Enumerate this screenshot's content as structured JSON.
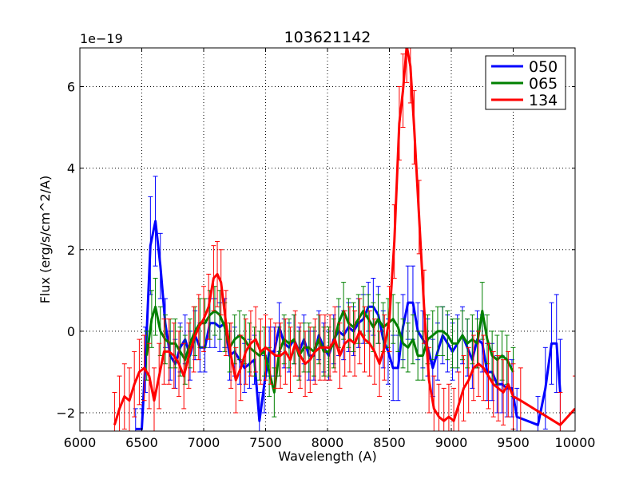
{
  "chart_data": {
    "type": "line",
    "title": "103621142",
    "xlabel": "Wavelength (A)",
    "ylabel": "Flux (erg/s/cm^2/A)",
    "y_offset_label": "1e−19",
    "xlim": [
      6000,
      10000
    ],
    "ylim": [
      -2.45,
      6.95
    ],
    "grid": true,
    "x_ticks": [
      6000,
      6500,
      7000,
      7500,
      8000,
      8500,
      9000,
      9500,
      10000
    ],
    "x_tick_labels": [
      "6000",
      "6500",
      "7000",
      "7500",
      "8000",
      "8500",
      "9000",
      "9500",
      "10000"
    ],
    "y_ticks": [
      -2,
      0,
      2,
      4,
      6
    ],
    "y_tick_labels": [
      "−2",
      "0",
      "2",
      "4",
      "6"
    ],
    "legend_position": "top-right",
    "series": [
      {
        "name": "050",
        "color": "#0000ff",
        "x": [
          6450,
          6500,
          6530,
          6570,
          6610,
          6650,
          6690,
          6730,
          6770,
          6810,
          6850,
          6890,
          6930,
          6970,
          7010,
          7050,
          7090,
          7130,
          7170,
          7210,
          7250,
          7290,
          7330,
          7370,
          7410,
          7450,
          7490,
          7530,
          7570,
          7610,
          7650,
          7690,
          7730,
          7770,
          7810,
          7850,
          7890,
          7930,
          7970,
          8010,
          8050,
          8090,
          8130,
          8170,
          8210,
          8250,
          8290,
          8330,
          8370,
          8410,
          8450,
          8490,
          8530,
          8570,
          8610,
          8650,
          8690,
          8730,
          8770,
          8810,
          8850,
          8890,
          8930,
          8970,
          9010,
          9050,
          9090,
          9130,
          9170,
          9210,
          9250,
          9290,
          9330,
          9370,
          9410,
          9450,
          9490,
          9530,
          9700,
          9760,
          9810,
          9850,
          9880
        ],
        "y": [
          -2.4,
          -2.4,
          -0.7,
          2.1,
          2.7,
          1.6,
          0.2,
          -0.6,
          -0.8,
          -0.4,
          -0.2,
          -0.6,
          -0.1,
          -0.4,
          -0.4,
          0.2,
          0.2,
          0.1,
          0.2,
          -0.6,
          -0.5,
          -0.7,
          -0.9,
          -0.8,
          -0.7,
          -2.2,
          -1.3,
          -0.5,
          -0.5,
          0.1,
          -0.3,
          -0.4,
          -0.2,
          -0.5,
          -0.2,
          -0.6,
          -0.6,
          -0.1,
          -0.4,
          -0.6,
          -0.2,
          0.0,
          -0.1,
          0.1,
          0.0,
          0.2,
          0.3,
          0.6,
          0.6,
          0.4,
          -0.2,
          -0.5,
          -0.9,
          -0.9,
          0.1,
          0.7,
          0.7,
          0.0,
          -0.2,
          -0.4,
          -0.9,
          -0.5,
          -0.1,
          -0.3,
          -0.5,
          -0.3,
          -0.1,
          -0.4,
          -0.7,
          -0.2,
          -0.3,
          -1.0,
          -1.0,
          -1.3,
          -1.3,
          -1.4,
          -1.4,
          -2.1,
          -2.3,
          -1.4,
          -0.3,
          -0.3,
          -1.5
        ],
        "err": [
          0.5,
          0.5,
          0.8,
          1.2,
          1.1,
          0.8,
          0.6,
          0.6,
          0.6,
          0.6,
          0.6,
          0.6,
          0.6,
          0.6,
          0.6,
          0.6,
          0.6,
          0.6,
          0.6,
          0.6,
          0.6,
          0.6,
          0.6,
          0.6,
          0.6,
          0.7,
          0.7,
          0.6,
          0.6,
          0.6,
          0.6,
          0.6,
          0.6,
          0.6,
          0.6,
          0.6,
          0.6,
          0.6,
          0.6,
          0.6,
          0.6,
          0.6,
          0.6,
          0.6,
          0.6,
          0.6,
          0.6,
          0.6,
          0.7,
          0.7,
          0.7,
          0.8,
          0.8,
          0.8,
          0.8,
          0.9,
          0.9,
          0.7,
          0.7,
          0.7,
          0.7,
          0.7,
          0.7,
          0.7,
          0.7,
          0.7,
          0.7,
          0.7,
          0.7,
          0.7,
          0.7,
          0.7,
          0.7,
          0.7,
          0.7,
          0.7,
          0.7,
          0.7,
          0.7,
          1.0,
          1.0,
          1.2,
          1.3
        ]
      },
      {
        "name": "065",
        "color": "#008000",
        "x": [
          6540,
          6580,
          6610,
          6650,
          6690,
          6730,
          6770,
          6810,
          6850,
          6890,
          6930,
          6970,
          7010,
          7050,
          7090,
          7130,
          7170,
          7210,
          7250,
          7290,
          7330,
          7370,
          7410,
          7450,
          7490,
          7530,
          7570,
          7610,
          7650,
          7690,
          7730,
          7770,
          7810,
          7850,
          7890,
          7930,
          7970,
          8010,
          8050,
          8090,
          8130,
          8170,
          8210,
          8250,
          8290,
          8330,
          8370,
          8410,
          8450,
          8490,
          8530,
          8570,
          8610,
          8650,
          8690,
          8730,
          8770,
          8810,
          8850,
          8890,
          8930,
          8970,
          9010,
          9050,
          9090,
          9130,
          9170,
          9210,
          9250,
          9290,
          9330,
          9370,
          9410,
          9450,
          9500
        ],
        "y": [
          -0.6,
          0.3,
          0.6,
          0.0,
          -0.2,
          -0.3,
          -0.3,
          -0.5,
          -0.7,
          -0.3,
          0.0,
          0.2,
          0.2,
          0.4,
          0.5,
          0.4,
          0.1,
          -0.4,
          -0.2,
          -0.1,
          -0.2,
          -0.4,
          -0.5,
          -0.6,
          -0.5,
          -1.0,
          -1.5,
          -0.5,
          -0.2,
          -0.3,
          -0.2,
          -0.6,
          -0.4,
          -0.4,
          -0.5,
          -0.2,
          -0.5,
          -0.5,
          -0.3,
          0.2,
          0.5,
          0.2,
          0.1,
          0.3,
          0.5,
          0.3,
          0.1,
          0.3,
          0.1,
          0.2,
          0.3,
          0.1,
          -0.3,
          -0.4,
          -0.2,
          -0.6,
          -0.6,
          -0.2,
          -0.1,
          0.0,
          0.0,
          -0.1,
          -0.3,
          -0.3,
          -0.1,
          -0.3,
          -0.2,
          -0.3,
          0.5,
          -0.2,
          -0.6,
          -0.7,
          -0.6,
          -0.7,
          -1.0
        ],
        "err": [
          0.6,
          0.7,
          0.7,
          0.6,
          0.6,
          0.6,
          0.6,
          0.6,
          0.6,
          0.6,
          0.6,
          0.6,
          0.6,
          0.6,
          0.6,
          0.6,
          0.6,
          0.6,
          0.6,
          0.6,
          0.6,
          0.6,
          0.6,
          0.6,
          0.6,
          0.6,
          0.6,
          0.6,
          0.6,
          0.6,
          0.6,
          0.6,
          0.6,
          0.6,
          0.6,
          0.6,
          0.6,
          0.6,
          0.6,
          0.6,
          0.7,
          0.6,
          0.6,
          0.6,
          0.6,
          0.6,
          0.6,
          0.6,
          0.6,
          0.6,
          0.6,
          0.6,
          0.6,
          0.6,
          0.6,
          0.6,
          0.6,
          0.6,
          0.6,
          0.6,
          0.6,
          0.6,
          0.6,
          0.6,
          0.6,
          0.6,
          0.6,
          0.6,
          0.7,
          0.6,
          0.6,
          0.6,
          0.6,
          0.6,
          0.6
        ]
      },
      {
        "name": "134",
        "color": "#ff0000",
        "x": [
          6280,
          6320,
          6360,
          6400,
          6440,
          6480,
          6520,
          6560,
          6600,
          6640,
          6680,
          6720,
          6760,
          6800,
          6840,
          6880,
          6920,
          6960,
          7000,
          7040,
          7080,
          7110,
          7140,
          7180,
          7220,
          7260,
          7300,
          7340,
          7380,
          7420,
          7460,
          7500,
          7540,
          7580,
          7620,
          7660,
          7700,
          7740,
          7780,
          7820,
          7860,
          7900,
          7940,
          7980,
          8020,
          8060,
          8100,
          8140,
          8180,
          8220,
          8260,
          8300,
          8340,
          8380,
          8420,
          8460,
          8500,
          8540,
          8580,
          8610,
          8640,
          8670,
          8700,
          8740,
          8780,
          8820,
          8860,
          8900,
          8940,
          8980,
          9020,
          9060,
          9100,
          9140,
          9180,
          9220,
          9260,
          9300,
          9340,
          9380,
          9420,
          9460,
          9500,
          9560,
          9880,
          10000
        ],
        "y": [
          -2.3,
          -1.9,
          -1.6,
          -1.7,
          -1.3,
          -1.0,
          -0.9,
          -1.1,
          -1.7,
          -1.1,
          -0.5,
          -0.5,
          -0.6,
          -0.8,
          -1.1,
          -0.6,
          -0.2,
          0.1,
          0.3,
          0.6,
          1.3,
          1.4,
          1.2,
          0.2,
          -0.6,
          -1.2,
          -0.9,
          -0.5,
          -0.3,
          -0.2,
          -0.5,
          -0.4,
          -0.5,
          -0.6,
          -0.6,
          -0.5,
          -0.7,
          -0.3,
          -0.6,
          -0.8,
          -0.7,
          -0.5,
          -0.4,
          -0.4,
          -0.4,
          -0.2,
          -0.6,
          -0.3,
          -0.2,
          -0.3,
          0.0,
          -0.2,
          -0.3,
          -0.5,
          -0.8,
          -0.4,
          0.3,
          2.2,
          5.1,
          5.9,
          7.0,
          6.5,
          5.0,
          2.8,
          0.6,
          -1.2,
          -1.9,
          -2.1,
          -2.2,
          -2.1,
          -2.2,
          -1.8,
          -1.4,
          -1.2,
          -0.9,
          -0.8,
          -0.9,
          -1.1,
          -1.3,
          -1.4,
          -1.5,
          -1.3,
          -1.6,
          -1.7,
          -2.3,
          -1.9
        ],
        "err": [
          0.8,
          0.8,
          0.8,
          0.8,
          0.8,
          0.8,
          0.8,
          0.8,
          0.8,
          0.8,
          0.8,
          0.8,
          0.8,
          0.8,
          0.8,
          0.8,
          0.8,
          0.8,
          0.8,
          0.8,
          0.8,
          0.8,
          0.8,
          0.8,
          0.8,
          0.8,
          0.8,
          0.8,
          0.8,
          0.8,
          0.8,
          0.8,
          0.8,
          0.8,
          0.8,
          0.8,
          0.8,
          0.8,
          0.8,
          0.8,
          0.8,
          0.8,
          0.8,
          0.8,
          0.8,
          0.8,
          0.8,
          0.8,
          0.8,
          0.8,
          0.8,
          0.8,
          0.8,
          0.8,
          0.8,
          0.8,
          0.8,
          0.9,
          0.9,
          0.9,
          0.9,
          0.9,
          0.9,
          0.9,
          0.9,
          0.8,
          0.8,
          0.8,
          0.8,
          0.8,
          0.8,
          0.8,
          0.8,
          0.8,
          0.8,
          0.8,
          0.8,
          0.8,
          0.8,
          0.8,
          0.8,
          0.8,
          0.8,
          0.8,
          0.8,
          0.8
        ]
      }
    ]
  }
}
